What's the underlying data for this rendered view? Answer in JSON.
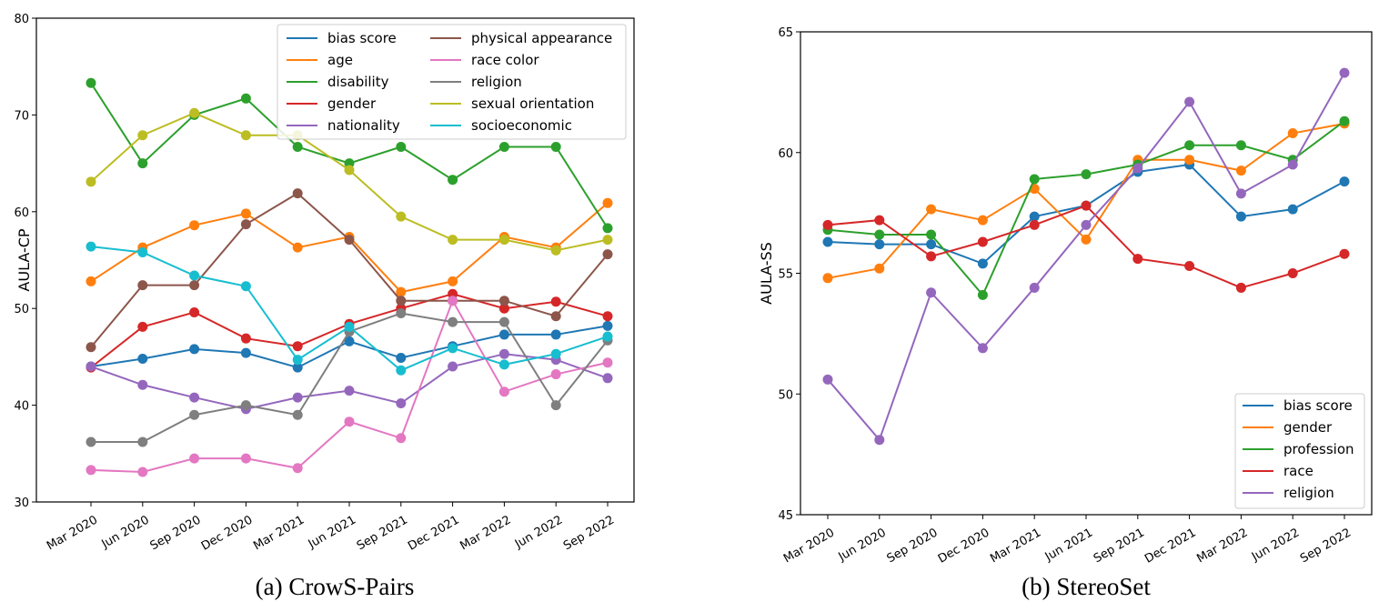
{
  "chart_data": [
    {
      "type": "line",
      "caption": "(a) CrowS-Pairs",
      "ylabel": "AULA-CP",
      "xlabel": "",
      "ylim": [
        30,
        80
      ],
      "yticks": [
        30,
        40,
        50,
        60,
        70,
        80
      ],
      "legend": "top-right",
      "legend_columns": 2,
      "categories": [
        "Mar 2020",
        "Jun 2020",
        "Sep 2020",
        "Dec 2020",
        "Mar 2021",
        "Jun 2021",
        "Sep 2021",
        "Dec 2021",
        "Mar 2022",
        "Jun 2022",
        "Sep 2022"
      ],
      "series": [
        {
          "name": "bias score",
          "color": "#1f77b4",
          "values": [
            44.0,
            44.8,
            45.8,
            45.4,
            43.9,
            46.6,
            44.9,
            46.1,
            47.3,
            47.3,
            48.2
          ]
        },
        {
          "name": "age",
          "color": "#ff7f0e",
          "values": [
            52.8,
            56.3,
            58.6,
            59.8,
            56.3,
            57.4,
            51.7,
            52.8,
            57.4,
            56.3,
            60.9
          ]
        },
        {
          "name": "disability",
          "color": "#2ca02c",
          "values": [
            73.3,
            65.0,
            70.0,
            71.7,
            66.7,
            65.0,
            66.7,
            63.3,
            66.7,
            66.7,
            58.3
          ]
        },
        {
          "name": "gender",
          "color": "#d62728",
          "values": [
            43.9,
            48.1,
            49.6,
            46.9,
            46.1,
            48.4,
            50.0,
            51.5,
            50.0,
            50.7,
            49.2
          ]
        },
        {
          "name": "nationality",
          "color": "#9467bd",
          "values": [
            44.0,
            42.1,
            40.8,
            39.6,
            40.8,
            41.5,
            40.2,
            44.0,
            45.3,
            44.7,
            42.8
          ]
        },
        {
          "name": "physical appearance",
          "color": "#8c564b",
          "values": [
            46.0,
            52.4,
            52.4,
            58.7,
            61.9,
            57.1,
            50.8,
            50.8,
            50.8,
            49.2,
            55.6
          ]
        },
        {
          "name": "race color",
          "color": "#e377c2",
          "values": [
            33.3,
            33.1,
            34.5,
            34.5,
            33.5,
            38.3,
            36.6,
            50.8,
            41.4,
            43.2,
            44.4
          ]
        },
        {
          "name": "religion",
          "color": "#7f7f7f",
          "values": [
            36.2,
            36.2,
            39.0,
            40.0,
            39.0,
            47.6,
            49.5,
            48.6,
            48.6,
            40.0,
            46.7
          ]
        },
        {
          "name": "sexual orientation",
          "color": "#bcbd22",
          "values": [
            63.1,
            67.9,
            70.2,
            67.9,
            67.9,
            64.3,
            59.5,
            57.1,
            57.1,
            56.0,
            57.1
          ]
        },
        {
          "name": "socioeconomic",
          "color": "#17becf",
          "values": [
            56.4,
            55.8,
            53.4,
            52.3,
            44.7,
            48.1,
            43.6,
            45.9,
            44.2,
            45.3,
            47.1
          ]
        }
      ]
    },
    {
      "type": "line",
      "caption": "(b) StereoSet",
      "ylabel": "AULA-SS",
      "xlabel": "",
      "ylim": [
        45,
        65
      ],
      "yticks": [
        45,
        50,
        55,
        60,
        65
      ],
      "legend": "bottom-right",
      "legend_columns": 1,
      "categories": [
        "Mar 2020",
        "Jun 2020",
        "Sep 2020",
        "Dec 2020",
        "Mar 2021",
        "Jun 2021",
        "Sep 2021",
        "Dec 2021",
        "Mar 2022",
        "Jun 2022",
        "Sep 2022"
      ],
      "series": [
        {
          "name": "bias score",
          "color": "#1f77b4",
          "values": [
            56.3,
            56.2,
            56.2,
            55.4,
            57.35,
            57.8,
            59.2,
            59.5,
            57.35,
            57.65,
            58.8
          ]
        },
        {
          "name": "gender",
          "color": "#ff7f0e",
          "values": [
            54.8,
            55.2,
            57.65,
            57.2,
            58.5,
            56.4,
            59.7,
            59.7,
            59.25,
            60.8,
            61.2
          ]
        },
        {
          "name": "profession",
          "color": "#2ca02c",
          "values": [
            56.8,
            56.6,
            56.6,
            54.1,
            58.9,
            59.1,
            59.5,
            60.3,
            60.3,
            59.7,
            61.3
          ]
        },
        {
          "name": "race",
          "color": "#d62728",
          "values": [
            57.0,
            57.2,
            55.7,
            56.3,
            57.0,
            57.8,
            55.6,
            55.3,
            54.4,
            55.0,
            55.8
          ]
        },
        {
          "name": "religion",
          "color": "#9467bd",
          "values": [
            50.6,
            48.1,
            54.2,
            51.9,
            54.4,
            57.0,
            59.35,
            62.1,
            58.3,
            59.5,
            63.3
          ]
        }
      ]
    }
  ]
}
